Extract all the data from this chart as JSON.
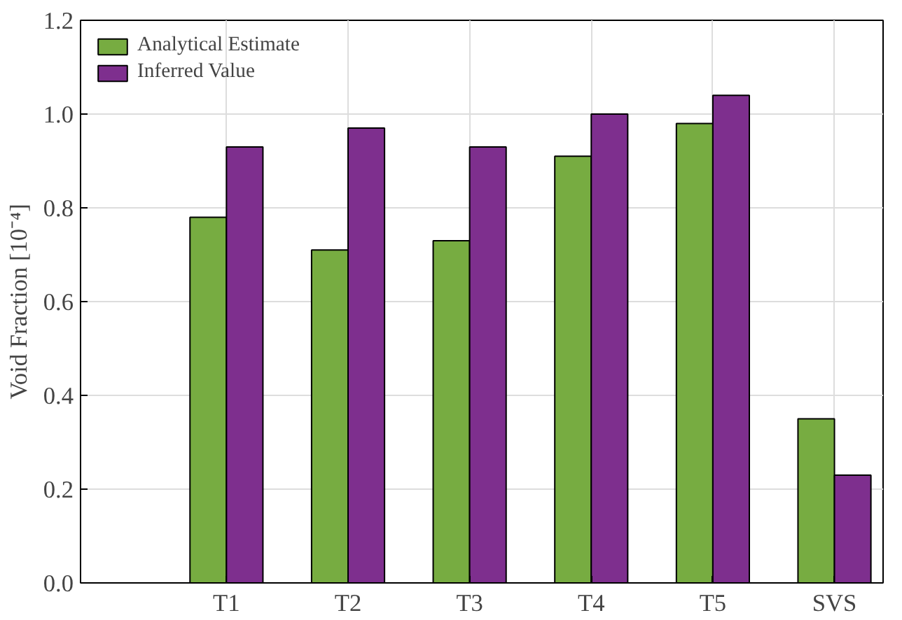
{
  "chart_data": {
    "type": "bar",
    "ylabel": "Void Fraction [10⁻⁴]",
    "categories": [
      "T1",
      "T2",
      "T3",
      "T4",
      "T5",
      "SVS"
    ],
    "series": [
      {
        "name": "Analytical Estimate",
        "color": "#77ac41",
        "values": [
          0.78,
          0.71,
          0.73,
          0.91,
          0.98,
          0.35
        ]
      },
      {
        "name": "Inferred Value",
        "color": "#7e2f8e",
        "values": [
          0.93,
          0.97,
          0.93,
          1.0,
          1.04,
          0.23
        ]
      }
    ],
    "ylim": [
      0,
      1.2
    ],
    "yticks": [
      {
        "value": 0,
        "label": "0.0"
      },
      {
        "value": 0.2,
        "label": "0.2"
      },
      {
        "value": 0.4,
        "label": "0.4"
      },
      {
        "value": 0.6,
        "label": "0.6"
      },
      {
        "value": 0.8,
        "label": "0.8"
      },
      {
        "value": 1.0,
        "label": "1.0"
      },
      {
        "value": 1.2,
        "label": "1.2"
      }
    ],
    "grid": true,
    "legend": "top left"
  }
}
